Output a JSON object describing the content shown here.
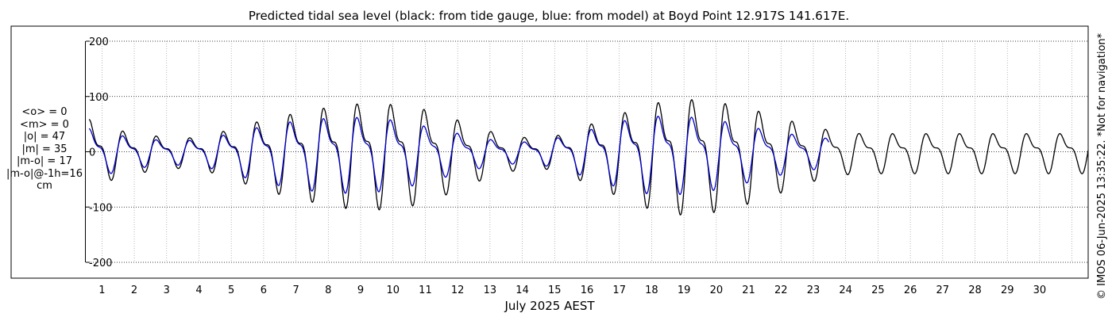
{
  "chart_data": {
    "type": "line",
    "title": "Predicted tidal sea level (black: from tide gauge, blue: from model) at Boyd Point 12.917S 141.617E.",
    "xlabel": "July 2025 AEST",
    "ylabel": "",
    "xlim": [
      0.5,
      31.5
    ],
    "ylim": [
      -200,
      200
    ],
    "y_ticks": [
      "200",
      "100",
      "0",
      "-100",
      "-200"
    ],
    "x_ticks": [
      "1",
      "2",
      "3",
      "4",
      "5",
      "6",
      "7",
      "8",
      "9",
      "10",
      "11",
      "12",
      "13",
      "14",
      "15",
      "16",
      "17",
      "18",
      "19",
      "20",
      "21",
      "22",
      "23",
      "24",
      "25",
      "26",
      "27",
      "28",
      "29",
      "30"
    ],
    "grid": true,
    "series": [
      {
        "color": "#000000",
        "x": [
          0.5,
          1.0,
          1.5,
          2.0,
          2.5,
          3.0,
          3.5,
          4.0,
          4.5,
          5.0,
          5.5,
          6.0,
          6.5,
          7.0,
          7.5,
          8.0,
          8.5,
          9.0,
          9.5,
          10.0,
          10.5,
          11.0,
          11.5,
          12.0,
          12.5,
          13.0,
          13.5,
          14.0,
          14.5,
          15.0,
          15.5,
          16.0,
          16.5,
          17.0,
          17.5,
          18.0,
          18.5,
          19.0,
          19.5,
          20.0,
          20.5,
          21.0,
          21.5,
          22.0,
          22.5,
          23.0,
          23.5,
          24.0,
          24.5,
          25.0,
          25.5,
          26.0,
          26.5,
          27.0,
          27.5,
          28.0,
          28.5,
          29.0,
          29.5,
          30.0,
          30.5,
          31.0,
          31.5
        ],
        "amp": [
          75,
          58,
          48,
          40,
          36,
          32,
          30,
          32,
          40,
          50,
          60,
          70,
          78,
          85,
          92,
          98,
          103,
          106,
          106,
          104,
          100,
          93,
          82,
          70,
          58,
          45,
          38,
          32,
          30,
          34,
          45,
          58,
          70,
          82,
          95,
          106,
          112,
          116,
          114,
          110,
          103,
          95,
          86,
          75,
          64,
          54,
          48,
          42,
          40
        ],
        "env_x": [
          0.5,
          1.0,
          1.5,
          2.0,
          2.5,
          3.0,
          3.5,
          4.0,
          4.5,
          5.0,
          5.5,
          6.0,
          6.5,
          7.0,
          7.5,
          8.0,
          8.5,
          9.0,
          9.5,
          10.0,
          10.5,
          11.0,
          11.5,
          12.0,
          12.5,
          13.0,
          13.5,
          14.0,
          14.5,
          15.0,
          15.5,
          16.0,
          16.5,
          17.0,
          17.5,
          18.0,
          18.5,
          19.0,
          19.5,
          20.0,
          20.5,
          21.0,
          21.5,
          22.0,
          22.5,
          23.0,
          23.5,
          24.0,
          24.5
        ]
      },
      {
        "color": "#0000cc",
        "amp": [
          55,
          45,
          38,
          32,
          28,
          26,
          25,
          27,
          33,
          42,
          50,
          58,
          64,
          70,
          74,
          76,
          78,
          78,
          76,
          72,
          66,
          58,
          50,
          42,
          34,
          28,
          24,
          22,
          24,
          30,
          38,
          48,
          58,
          68,
          76,
          80,
          82,
          80,
          77,
          72,
          66,
          58,
          50,
          44,
          38,
          34,
          30
        ]
      }
    ]
  },
  "stats": {
    "lines": [
      "<o> = 0",
      "<m> = 0",
      "|o| = 47",
      "|m| = 35",
      "|m-o| = 17",
      "|m-o|@-1h=16",
      "cm"
    ]
  },
  "credit": "© IMOS 06-Jun-2025 13:35:22. *Not for navigation*"
}
